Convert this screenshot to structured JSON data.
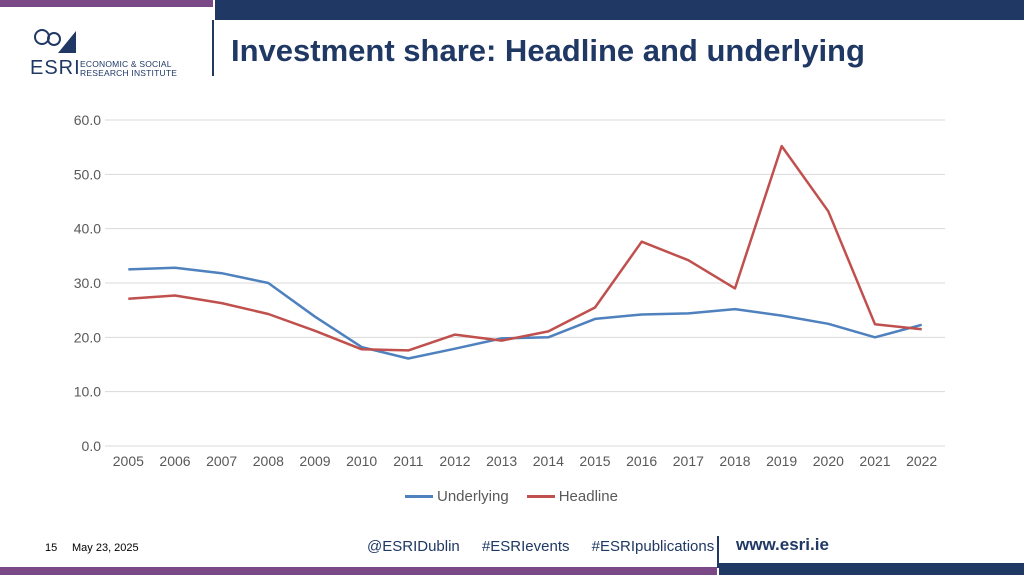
{
  "header": {
    "title": "Investment share: Headline and underlying",
    "logo_line1": "ECONOMIC & SOCIAL",
    "logo_line2": "RESEARCH INSTITUTE",
    "logo_abbrev": "ESRI"
  },
  "footer": {
    "slide_number": "15",
    "date": "May 23, 2025",
    "social": [
      "@ESRIDublin",
      "#ESRIevents",
      "#ESRIpublications"
    ],
    "website": "www.esri.ie"
  },
  "colors": {
    "navy": "#1f3864",
    "purple": "#7b4a86",
    "underlying": "#4e81bd",
    "headline": "#c0504d"
  },
  "chart_data": {
    "type": "line",
    "title": "",
    "xlabel": "",
    "ylabel": "",
    "ylim": [
      0,
      60
    ],
    "yticks": [
      "0.0",
      "10.0",
      "20.0",
      "30.0",
      "40.0",
      "50.0",
      "60.0"
    ],
    "categories": [
      "2005",
      "2006",
      "2007",
      "2008",
      "2009",
      "2010",
      "2011",
      "2012",
      "2013",
      "2014",
      "2015",
      "2016",
      "2017",
      "2018",
      "2019",
      "2020",
      "2021",
      "2022"
    ],
    "grid": true,
    "legend": "bottom",
    "series": [
      {
        "name": "Underlying",
        "color": "#4e81bd",
        "values": [
          32.5,
          32.8,
          31.8,
          30.0,
          23.8,
          18.2,
          16.1,
          17.9,
          19.8,
          20.0,
          23.4,
          24.2,
          24.4,
          25.2,
          24.0,
          22.5,
          20.0,
          22.3
        ]
      },
      {
        "name": "Headline",
        "color": "#c0504d",
        "values": [
          27.1,
          27.7,
          26.3,
          24.3,
          21.2,
          17.8,
          17.6,
          20.5,
          19.4,
          21.1,
          25.5,
          37.6,
          34.2,
          29.0,
          55.2,
          43.2,
          22.4,
          21.5
        ]
      }
    ]
  }
}
